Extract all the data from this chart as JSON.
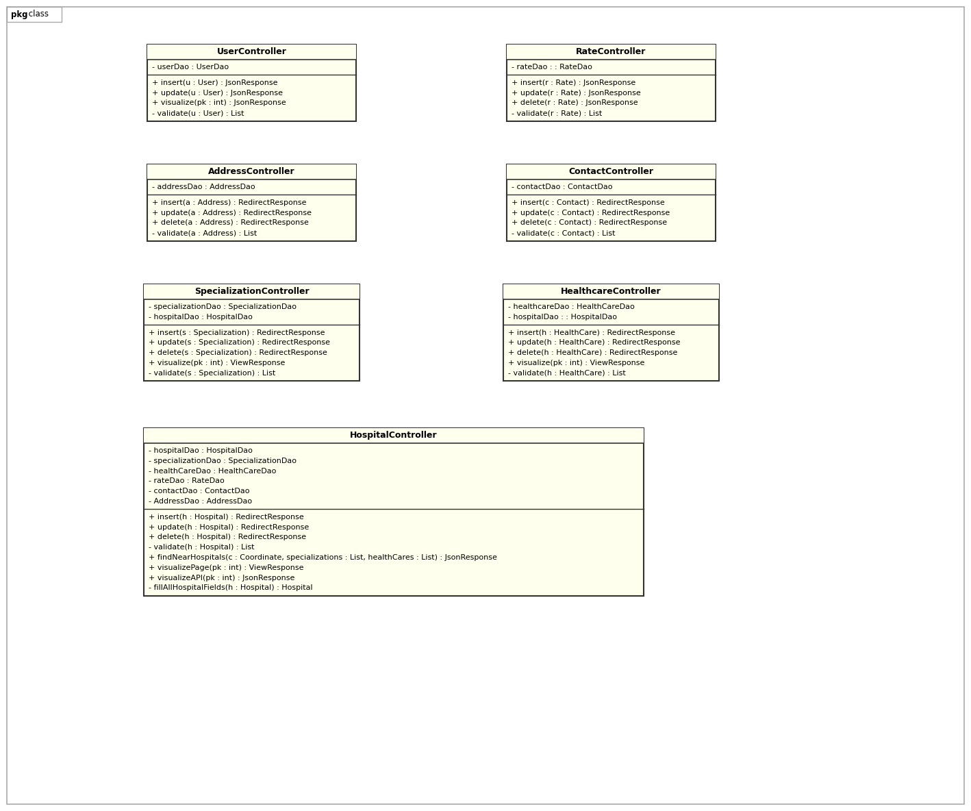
{
  "bg_color": "#ffffff",
  "box_fill": "#ffffee",
  "border_color": "#333333",
  "title_font_size": 9,
  "text_font_size": 8,
  "pkg_label_bold": "pkg",
  "pkg_label_normal": " class",
  "classes": [
    {
      "name": "UserController",
      "col": 0,
      "row": 0,
      "attributes": [
        "- userDao : UserDao"
      ],
      "methods": [
        "+ insert(u : User) : JsonResponse",
        "+ update(u : User) : JsonResponse",
        "+ visualize(pk : int) : JsonResponse",
        "- validate(u : User) : List"
      ]
    },
    {
      "name": "RateController",
      "col": 1,
      "row": 0,
      "attributes": [
        "- rateDao : : RateDao"
      ],
      "methods": [
        "+ insert(r : Rate) : JsonResponse",
        "+ update(r : Rate) : JsonResponse",
        "+ delete(r : Rate) : JsonResponse",
        "- validate(r : Rate) : List"
      ]
    },
    {
      "name": "AddressController",
      "col": 0,
      "row": 1,
      "attributes": [
        "- addressDao : AddressDao"
      ],
      "methods": [
        "+ insert(a : Address) : RedirectResponse",
        "+ update(a : Address) : RedirectResponse",
        "+ delete(a : Address) : RedirectResponse",
        "- validate(a : Address) : List"
      ]
    },
    {
      "name": "ContactController",
      "col": 1,
      "row": 1,
      "attributes": [
        "- contactDao : ContactDao"
      ],
      "methods": [
        "+ insert(c : Contact) : RedirectResponse",
        "+ update(c : Contact) : RedirectResponse",
        "+ delete(c : Contact) : RedirectResponse",
        "- validate(c : Contact) : List"
      ]
    },
    {
      "name": "SpecializationController",
      "col": 0,
      "row": 2,
      "attributes": [
        "- specializationDao : SpecializationDao",
        "- hospitalDao : HospitalDao"
      ],
      "methods": [
        "+ insert(s : Specialization) : RedirectResponse",
        "+ update(s : Specialization) : RedirectResponse",
        "+ delete(s : Specialization) : RedirectResponse",
        "+ visualize(pk : int) : ViewResponse",
        "- validate(s : Specialization) : List"
      ]
    },
    {
      "name": "HealthcareController",
      "col": 1,
      "row": 2,
      "attributes": [
        "- healthcareDao : HealthCareDao",
        "- hospitalDao : : HospitalDao"
      ],
      "methods": [
        "+ insert(h : HealthCare) : RedirectResponse",
        "+ update(h : HealthCare) : RedirectResponse",
        "+ delete(h : HealthCare) : RedirectResponse",
        "+ visualize(pk : int) : ViewResponse",
        "- validate(h : HealthCare) : List"
      ]
    },
    {
      "name": "HospitalController",
      "col": 0,
      "row": 3,
      "attributes": [
        "- hospitalDao : HospitalDao",
        "- specializationDao : SpecializationDao",
        "- healthCareDao : HealthCareDao",
        "- rateDao : RateDao",
        "- contactDao : ContactDao",
        "- AddressDao : AddressDao"
      ],
      "methods": [
        "+ insert(h : Hospital) : RedirectResponse",
        "+ update(h : Hospital) : RedirectResponse",
        "+ delete(h : Hospital) : RedirectResponse",
        "- validate(h : Hospital) : List",
        "+ findNearHospitals(c : Coordinate, specializations : List, healthCares : List) : JsonResponse",
        "+ visualizePage(pk : int) : ViewResponse",
        "+ visualizeAPI(pk : int) : JsonResponse",
        "- fillAllHospitalFields(h : Hospital) : Hospital"
      ]
    }
  ]
}
